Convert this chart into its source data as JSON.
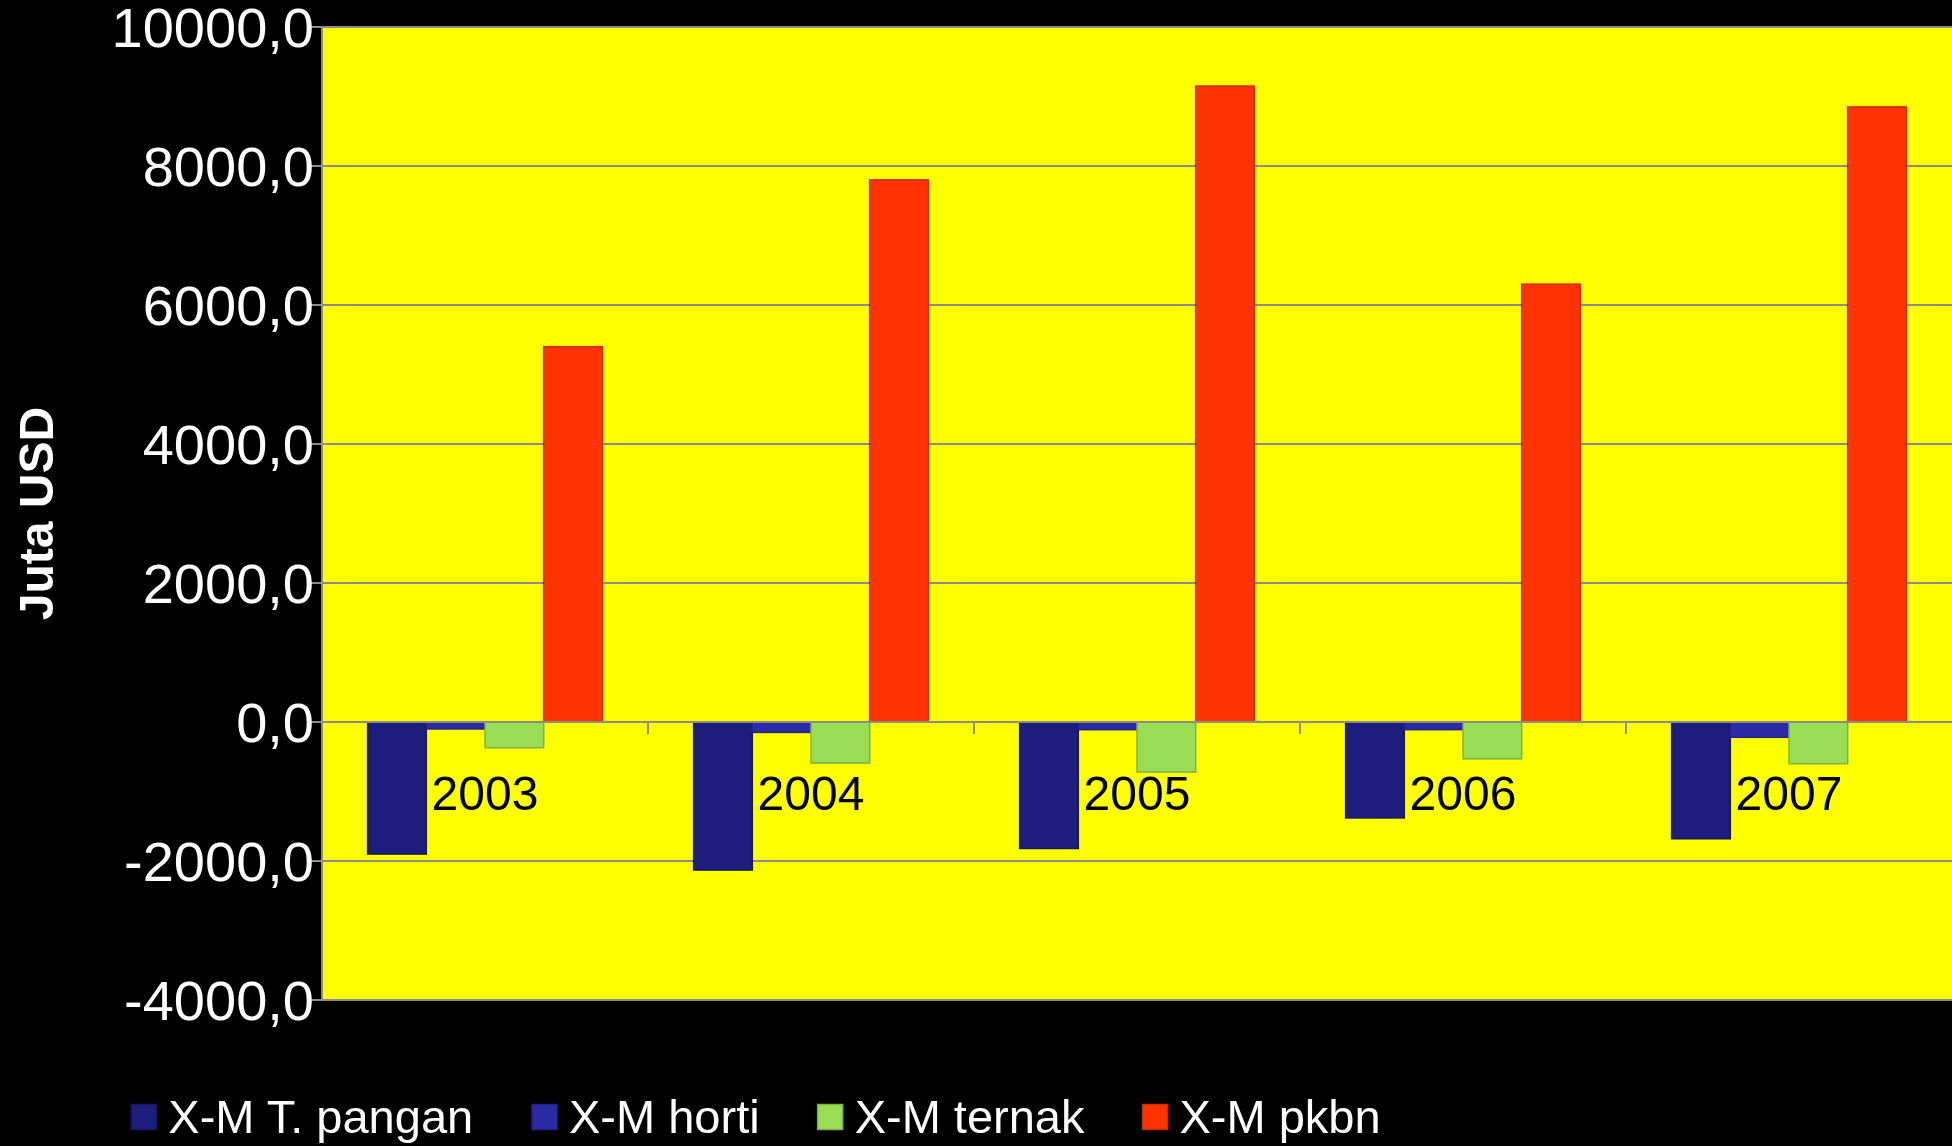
{
  "chart_data": {
    "type": "bar",
    "ylabel": "Juta USD",
    "categories": [
      "2003",
      "2004",
      "2005",
      "2006",
      "2007"
    ],
    "series": [
      {
        "name": "X-M T. pangan",
        "color": "#1d1d7e",
        "values": [
          -1900,
          -2130,
          -1820,
          -1380,
          -1680
        ]
      },
      {
        "name": "X-M horti",
        "color": "#2b2ba5",
        "values": [
          -100,
          -150,
          -110,
          -110,
          -220
        ]
      },
      {
        "name": "X-M ternak",
        "color": "#99dd55",
        "values": [
          -370,
          -590,
          -720,
          -530,
          -600
        ]
      },
      {
        "name": "X-M pkbn",
        "color": "#ff3300",
        "values": [
          5400,
          7800,
          9150,
          6300,
          8850
        ]
      }
    ],
    "ylim": [
      -4000,
      10000
    ],
    "yticks": [
      {
        "value": -4000,
        "label": "-4000,0"
      },
      {
        "value": -2000,
        "label": "-2000,0"
      },
      {
        "value": 0,
        "label": "0,0"
      },
      {
        "value": 2000,
        "label": "2000,0"
      },
      {
        "value": 4000,
        "label": "4000,0"
      },
      {
        "value": 6000,
        "label": "6000,0"
      },
      {
        "value": 8000,
        "label": "8000,0"
      },
      {
        "value": 10000,
        "label": "10000,0"
      }
    ],
    "grid": "y",
    "legend": "bottom"
  }
}
